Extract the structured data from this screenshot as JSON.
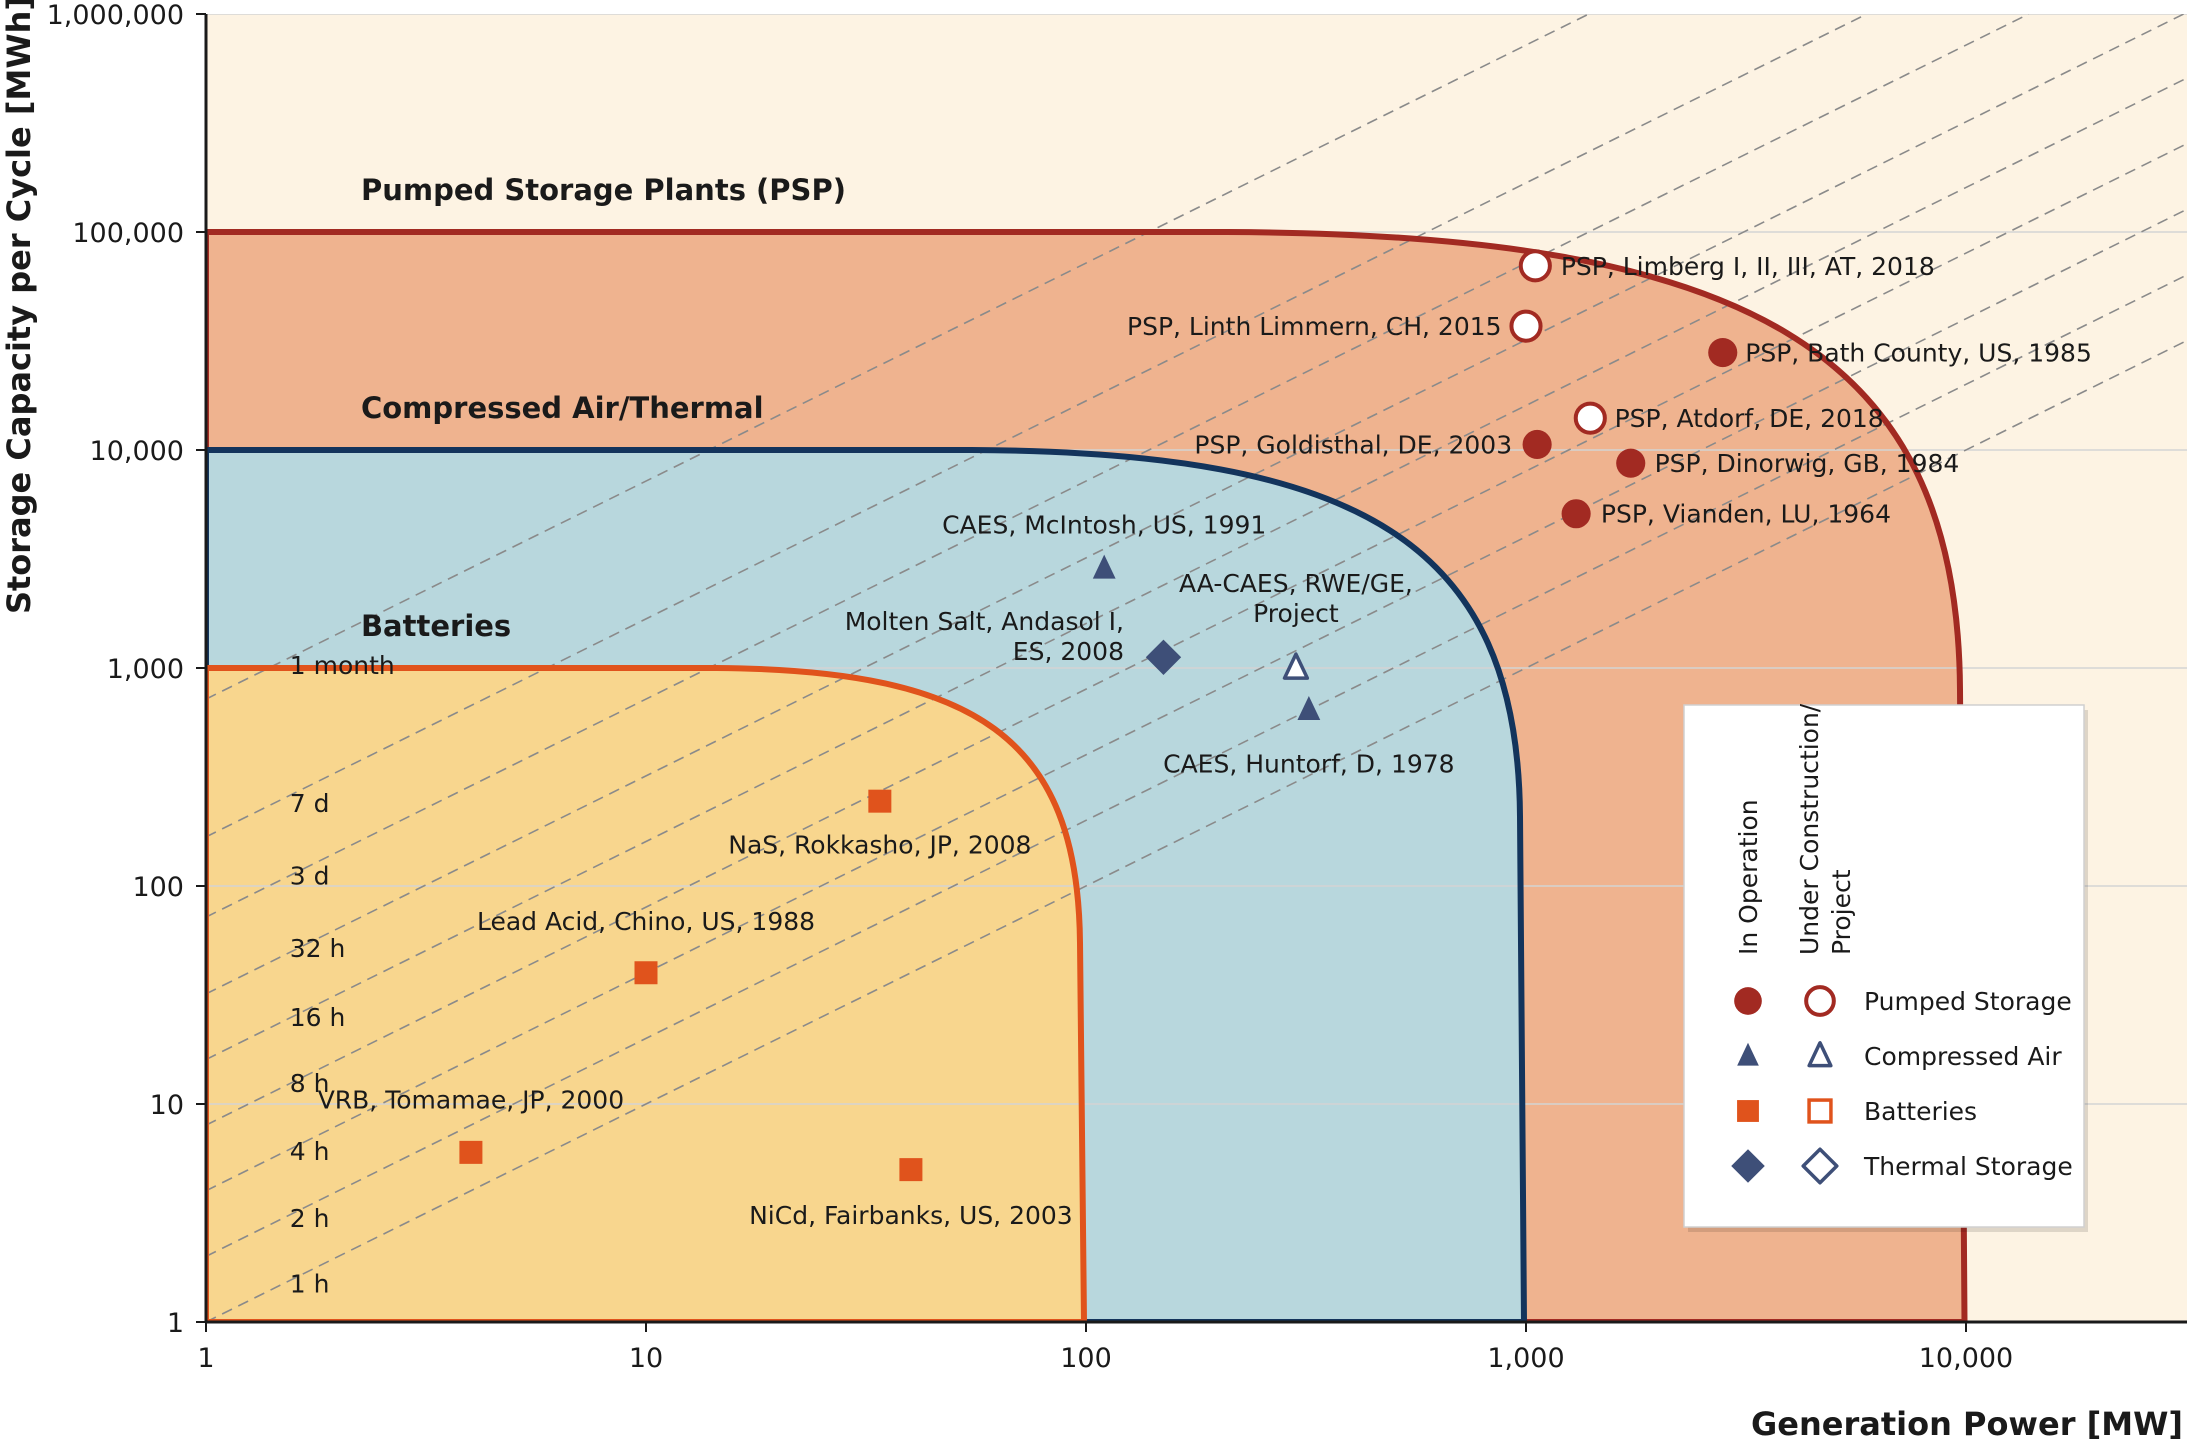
{
  "colors": {
    "bg_outer": "#fdf3e3",
    "psp_fill": "#efb38f",
    "psp_line": "#a22a22",
    "caes_fill": "#b8d7dd",
    "caes_line": "#13345c",
    "bat_fill": "#f8d68e",
    "bat_line": "#e0531c",
    "marker_psp": "#a22a22",
    "marker_caes": "#3e4f78",
    "marker_bat": "#e0531c",
    "marker_thermal": "#3e4f78"
  },
  "chart_data": {
    "type": "scatter",
    "x_scale": "log",
    "y_scale": "log",
    "xlim": [
      1,
      30000
    ],
    "ylim": [
      1,
      1000000
    ],
    "xlabel": "Generation Power [MW]",
    "ylabel": "Storage Capacity per Cycle [MWh]",
    "x_ticks": [
      {
        "value": 1,
        "label": "1"
      },
      {
        "value": 10,
        "label": "10"
      },
      {
        "value": 100,
        "label": "100"
      },
      {
        "value": 1000,
        "label": "1,000"
      },
      {
        "value": 10000,
        "label": "10,000"
      }
    ],
    "y_ticks": [
      {
        "value": 1,
        "label": "1"
      },
      {
        "value": 10,
        "label": "10"
      },
      {
        "value": 100,
        "label": "100"
      },
      {
        "value": 1000,
        "label": "1,000"
      },
      {
        "value": 10000,
        "label": "10,000"
      },
      {
        "value": 100000,
        "label": "100,000"
      },
      {
        "value": 1000000,
        "label": "1,000,000"
      }
    ],
    "grid": "horizontal",
    "regions": [
      {
        "key": "psp",
        "label": "Pumped Storage Plants (PSP)",
        "max_power": 10000,
        "max_capacity": 100000,
        "label_x": 2.25,
        "label_y": 140000
      },
      {
        "key": "caes",
        "label": "Compressed Air/Thermal",
        "max_power": 1000,
        "max_capacity": 10000,
        "label_x": 2.25,
        "label_y": 14000
      },
      {
        "key": "bat",
        "label": "Batteries",
        "max_power": 100,
        "max_capacity": 1000,
        "label_x": 2.25,
        "label_y": 1400
      }
    ],
    "duration_lines": [
      {
        "label": "1 h",
        "hours": 1,
        "label_x": 1.55,
        "label_y": 1.5
      },
      {
        "label": "2 h",
        "hours": 2,
        "label_x": 1.55,
        "label_y": 3.0
      },
      {
        "label": "4 h",
        "hours": 4,
        "label_x": 1.55,
        "label_y": 6.1
      },
      {
        "label": "8 h",
        "hours": 8,
        "label_x": 1.55,
        "label_y": 12.5
      },
      {
        "label": "16 h",
        "hours": 16,
        "label_x": 1.55,
        "label_y": 25
      },
      {
        "label": "32 h",
        "hours": 32,
        "label_x": 1.55,
        "label_y": 52
      },
      {
        "label": "3 d",
        "hours": 72,
        "label_x": 1.55,
        "label_y": 112
      },
      {
        "label": "7 d",
        "hours": 168,
        "label_x": 1.55,
        "label_y": 240
      },
      {
        "label": "1 month",
        "hours": 720,
        "label_x": 1.55,
        "label_y": 1030
      }
    ],
    "points": [
      {
        "label": "PSP, Limberg I, II, III, AT, 2018",
        "x": 1050,
        "y": 70000,
        "category": "psp",
        "status": "construction",
        "anchor": "start",
        "label_x": 1200,
        "label_y": 70000
      },
      {
        "label": "PSP, Linth Limmern, CH, 2015",
        "x": 1000,
        "y": 37000,
        "category": "psp",
        "status": "construction",
        "anchor": "end",
        "label_x": 880,
        "label_y": 37000
      },
      {
        "label": "PSP, Bath County, US, 1985",
        "x": 2800,
        "y": 28000,
        "category": "psp",
        "status": "operation",
        "anchor": "start",
        "label_x": 3150,
        "label_y": 28000
      },
      {
        "label": "PSP, Atdorf, DE, 2018",
        "x": 1400,
        "y": 14000,
        "category": "psp",
        "status": "construction",
        "anchor": "start",
        "label_x": 1590,
        "label_y": 14000
      },
      {
        "label": "PSP, Goldisthal, DE, 2003",
        "x": 1060,
        "y": 10600,
        "category": "psp",
        "status": "operation",
        "anchor": "end",
        "label_x": 930,
        "label_y": 10600
      },
      {
        "label": "PSP, Dinorwig, GB, 1984",
        "x": 1730,
        "y": 8700,
        "category": "psp",
        "status": "operation",
        "anchor": "start",
        "label_x": 1960,
        "label_y": 8700
      },
      {
        "label": "PSP, Vianden, LU, 1964",
        "x": 1300,
        "y": 5100,
        "category": "psp",
        "status": "operation",
        "anchor": "start",
        "label_x": 1480,
        "label_y": 5100
      },
      {
        "label": "CAES, McIntosh, US, 1991",
        "x": 110,
        "y": 2860,
        "category": "caes",
        "status": "operation",
        "anchor": "middle",
        "label_x": 110,
        "label_y": 4550
      },
      {
        "label": "CAES, Huntorf, D, 1978",
        "x": 321,
        "y": 642,
        "category": "caes",
        "status": "operation",
        "anchor": "middle",
        "label_x": 321,
        "label_y": 365
      },
      {
        "label": "AA-CAES, RWE/GE, Project",
        "x": 300,
        "y": 1000,
        "category": "caes",
        "status": "construction",
        "anchor": "middle",
        "label_x": 300,
        "label_y": 2100,
        "label_lines": [
          "AA-CAES, RWE/GE,",
          "Project"
        ]
      },
      {
        "label": "Molten Salt, Andasol I, ES, 2008",
        "x": 150,
        "y": 1120,
        "category": "thermal",
        "status": "operation",
        "anchor": "end",
        "label_x": 122,
        "label_y": 1400,
        "label_lines": [
          "Molten Salt, Andasol I,",
          "ES, 2008"
        ]
      },
      {
        "label": "NaS, Rokkasho, JP, 2008",
        "x": 34,
        "y": 245,
        "category": "bat",
        "status": "operation",
        "anchor": "middle",
        "label_x": 34,
        "label_y": 155
      },
      {
        "label": "Lead Acid, Chino, US, 1988",
        "x": 10,
        "y": 40,
        "category": "bat",
        "status": "operation",
        "anchor": "middle",
        "label_x": 10,
        "label_y": 69
      },
      {
        "label": "VRB, Tomamae, JP, 2000",
        "x": 4,
        "y": 6,
        "category": "bat",
        "status": "operation",
        "anchor": "middle",
        "label_x": 4,
        "label_y": 10.5
      },
      {
        "label": "NiCd, Fairbanks, US, 2003",
        "x": 40,
        "y": 5,
        "category": "bat",
        "status": "operation",
        "anchor": "middle",
        "label_x": 40,
        "label_y": 3.1
      }
    ],
    "legend": {
      "placement": "lower-right",
      "column_headers": [
        "In Operation",
        "Under Construction/ Project"
      ],
      "column_header_lines": [
        [
          "In Operation"
        ],
        [
          "Under Construction/",
          "Project"
        ]
      ],
      "rows": [
        {
          "label": "Pumped Storage",
          "category": "psp"
        },
        {
          "label": "Compressed Air",
          "category": "caes"
        },
        {
          "label": "Batteries",
          "category": "bat"
        },
        {
          "label": "Thermal Storage",
          "category": "thermal"
        }
      ]
    }
  }
}
